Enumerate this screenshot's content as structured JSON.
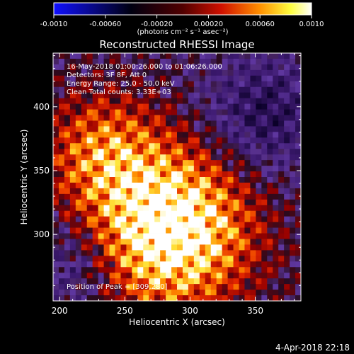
{
  "chart_data": {
    "type": "heatmap",
    "title": "Reconstructed RHESSI Image",
    "xlabel": "Heliocentric X (arcsec)",
    "ylabel": "Heliocentric Y (arcsec)",
    "xlim": [
      195,
      385
    ],
    "ylim": [
      248,
      442
    ],
    "xticks": [
      "200",
      "250",
      "300",
      "350"
    ],
    "yticks": [
      "300",
      "350",
      "400"
    ],
    "info_lines": [
      "16-May-2018 01:00:26.000 to 01:06:26.000",
      "Detectors: 3F 8F, Att 0",
      "Energy Range: 25.0 - 50.0 keV",
      "Clean     Total counts: 3.33E+03"
    ],
    "peak_label": "Position of Peak = [309,280]",
    "peak": [
      309,
      280
    ],
    "colorbar": {
      "range": [
        -0.001,
        0.001
      ],
      "ticks": [
        "-0.0010",
        "-0.00060",
        "-0.00020",
        "0.00020",
        "0.00060",
        "0.0010"
      ],
      "unit_label": "(photons cm⁻² s⁻¹ asec⁻²)",
      "colors": [
        "#1010ff",
        "#000000",
        "#c00000",
        "#ff8000",
        "#ffff40",
        "#ffffff"
      ]
    }
  },
  "footer": {
    "timestamp": "4-Apr-2018 22:18"
  }
}
